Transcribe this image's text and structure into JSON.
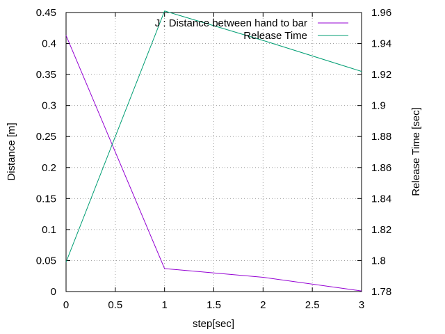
{
  "chart_data": {
    "type": "line",
    "xlabel": "step[sec]",
    "ylabel": "Distance [m]",
    "y2label": "Release Time [sec]",
    "xlim": [
      0,
      3
    ],
    "ylim": [
      0,
      0.45
    ],
    "y2lim": [
      1.78,
      1.96
    ],
    "grid": true,
    "legend_position": "top-right",
    "xticks": [
      "0",
      "0.5",
      "1",
      "1.5",
      "2",
      "2.5",
      "3"
    ],
    "yticks": [
      "0",
      "0.05",
      "0.1",
      "0.15",
      "0.2",
      "0.25",
      "0.3",
      "0.35",
      "0.4",
      "0.45"
    ],
    "y2ticks": [
      "1.78",
      "1.8",
      "1.82",
      "1.84",
      "1.86",
      "1.88",
      "1.9",
      "1.92",
      "1.94",
      "1.96"
    ],
    "series": [
      {
        "name": "J : Distance between hand to bar",
        "axis": "left",
        "color": "#9400d3",
        "x": [
          0,
          1,
          2,
          3
        ],
        "y": [
          0.413,
          0.037,
          0.023,
          0.001
        ]
      },
      {
        "name": "Release Time",
        "axis": "right",
        "color": "#009e73",
        "x": [
          0,
          1,
          2,
          3
        ],
        "y": [
          1.799,
          1.961,
          1.942,
          1.922
        ]
      }
    ]
  }
}
